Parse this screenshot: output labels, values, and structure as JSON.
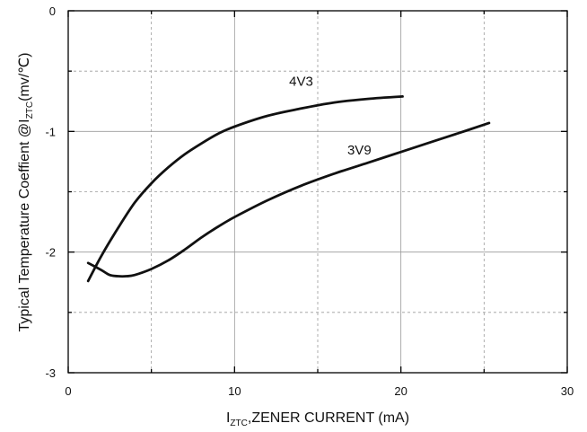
{
  "chart_data": {
    "type": "line",
    "title": "",
    "xlabel": {
      "prefix": "I",
      "sub": "ZTC",
      "suffix": ",ZENER CURRENT (mA)"
    },
    "ylabel": {
      "prefix": "Typical Temperature Coeffient @I",
      "sub": "ZTC",
      "suffix": "(mv/℃)"
    },
    "xlim": [
      0,
      30
    ],
    "ylim": [
      -3,
      0
    ],
    "x_ticks": [
      0,
      10,
      20,
      30
    ],
    "y_ticks": [
      0,
      -1,
      -2,
      -3
    ],
    "x_tick_labels": [
      "0",
      "10",
      "20",
      "30"
    ],
    "y_tick_labels": [
      "0",
      "-1",
      "-2",
      "-3"
    ],
    "grid": true,
    "series": [
      {
        "name": "4V3",
        "x": [
          1.2,
          2.0,
          3.0,
          4.0,
          5.0,
          6.0,
          7.0,
          8.0,
          9.0,
          10.0,
          12.0,
          14.0,
          16.0,
          18.0,
          20.1
        ],
        "y": [
          -2.24,
          -2.03,
          -1.8,
          -1.59,
          -1.43,
          -1.3,
          -1.19,
          -1.1,
          -1.02,
          -0.96,
          -0.87,
          -0.81,
          -0.76,
          -0.73,
          -0.71
        ]
      },
      {
        "name": "3V9",
        "x": [
          1.2,
          2.0,
          2.5,
          3.0,
          3.5,
          4.0,
          5.0,
          6.0,
          7.0,
          8.0,
          9.0,
          10.0,
          12.0,
          14.0,
          16.0,
          18.0,
          20.0,
          22.0,
          24.0,
          25.3
        ],
        "y": [
          -2.09,
          -2.15,
          -2.19,
          -2.2,
          -2.2,
          -2.19,
          -2.14,
          -2.07,
          -1.98,
          -1.88,
          -1.79,
          -1.71,
          -1.57,
          -1.45,
          -1.35,
          -1.26,
          -1.17,
          -1.08,
          -0.99,
          -0.93
        ]
      }
    ],
    "annotations": [
      {
        "text": "4V3",
        "series": 0,
        "x": 14.0,
        "y": -0.62
      },
      {
        "text": "3V9",
        "series": 1,
        "x": 17.5,
        "y": -1.19
      }
    ],
    "colors": {
      "line": "#111111",
      "grid": "#9a9a9a",
      "axis": "#000000"
    }
  }
}
